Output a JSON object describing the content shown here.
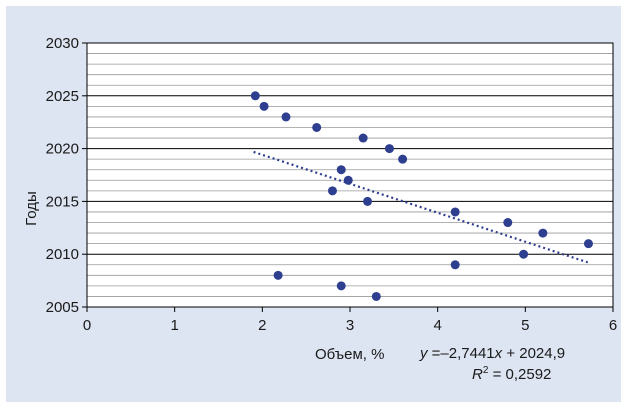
{
  "chart_data": {
    "type": "scatter",
    "xlabel": "Объем, %",
    "ylabel": "Годы",
    "xlim": [
      0,
      6
    ],
    "ylim": [
      2005,
      2030
    ],
    "x_ticks": [
      "0",
      "1",
      "2",
      "3",
      "4",
      "5",
      "6"
    ],
    "y_ticks": [
      "2005",
      "2010",
      "2015",
      "2020",
      "2025",
      "2030"
    ],
    "grid": true,
    "series": [
      {
        "points": [
          {
            "x": 1.92,
            "y": 2025
          },
          {
            "x": 2.02,
            "y": 2024
          },
          {
            "x": 2.27,
            "y": 2023
          },
          {
            "x": 2.62,
            "y": 2022
          },
          {
            "x": 3.15,
            "y": 2021
          },
          {
            "x": 3.45,
            "y": 2020
          },
          {
            "x": 3.6,
            "y": 2019
          },
          {
            "x": 2.9,
            "y": 2018
          },
          {
            "x": 2.98,
            "y": 2017
          },
          {
            "x": 2.8,
            "y": 2016
          },
          {
            "x": 3.2,
            "y": 2015
          },
          {
            "x": 4.2,
            "y": 2014
          },
          {
            "x": 4.8,
            "y": 2013
          },
          {
            "x": 5.2,
            "y": 2012
          },
          {
            "x": 5.72,
            "y": 2011
          },
          {
            "x": 4.98,
            "y": 2010
          },
          {
            "x": 4.2,
            "y": 2009
          },
          {
            "x": 2.18,
            "y": 2008
          },
          {
            "x": 2.9,
            "y": 2007
          },
          {
            "x": 3.3,
            "y": 2006
          }
        ],
        "color": "#2e3f8f"
      }
    ],
    "trendline": {
      "x_range": [
        1.9,
        5.72
      ],
      "slope": -2.7441,
      "intercept": 2024.9,
      "style": "dotted",
      "color": "#2e3f8f"
    },
    "annotations": {
      "equation_var": "y",
      "equation_rest": " =–2,7441",
      "equation_var2": "x",
      "equation_tail": " + 2024,9",
      "r2_label": "R",
      "r2_sup": "2",
      "r2_value": " = 0,2592"
    }
  },
  "colors": {
    "background": "#dde4f2",
    "plot_area": "#ffffff",
    "grid_major": "#000000",
    "grid_minor": "#999999",
    "marker": "#2e3f8f"
  }
}
